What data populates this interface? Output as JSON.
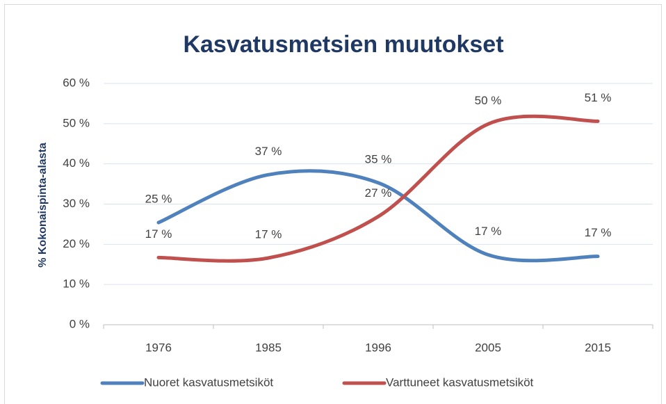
{
  "chart_data": {
    "type": "line",
    "title": "Kasvatusmetsien muutokset",
    "y_label": "% Kokonaispinta-alasta",
    "categories": [
      "1976",
      "1985",
      "1996",
      "2005",
      "2015"
    ],
    "series": [
      {
        "name": "Nuoret kasvatusmetsiköt",
        "color": "#4f81bd",
        "values": [
          25.4,
          37.3,
          35.3,
          17.4,
          17.0
        ],
        "value_labels": [
          "25 %",
          "37 %",
          "35 %",
          "17 %",
          "17 %"
        ]
      },
      {
        "name": "Varttuneet kasvatusmetsiköt",
        "color": "#c0504d",
        "values": [
          16.7,
          16.6,
          26.9,
          49.9,
          50.6
        ],
        "value_labels": [
          "17 %",
          "17 %",
          "27 %",
          "50 %",
          "51 %"
        ]
      }
    ],
    "ylim": [
      0,
      60
    ],
    "yticks": [
      {
        "value": 0,
        "label": "0 %"
      },
      {
        "value": 10,
        "label": "10 %"
      },
      {
        "value": 20,
        "label": "20 %"
      },
      {
        "value": 30,
        "label": "30 %"
      },
      {
        "value": 40,
        "label": "40 %"
      },
      {
        "value": 50,
        "label": "50 %"
      },
      {
        "value": 60,
        "label": "60 %"
      }
    ],
    "grid": true,
    "legend": "bottom",
    "smooth": true
  }
}
